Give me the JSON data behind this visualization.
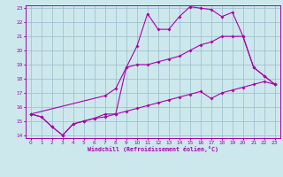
{
  "bg_color": "#cce8ec",
  "grid_color": "#99bbcc",
  "line_color": "#aa00aa",
  "xlabel": "Windchill (Refroidissement éolien,°C)",
  "xmin": 0,
  "xmax": 23,
  "ymin": 14,
  "ymax": 23,
  "line1_x": [
    0,
    1,
    2,
    3,
    4,
    5,
    6,
    7,
    8,
    9,
    10,
    11,
    12,
    13,
    14,
    15,
    16,
    17,
    18,
    19,
    20,
    21,
    22,
    23
  ],
  "line1_y": [
    15.5,
    15.3,
    14.6,
    14.0,
    14.8,
    15.0,
    15.2,
    15.3,
    15.5,
    18.8,
    20.3,
    22.6,
    21.5,
    21.5,
    22.4,
    23.1,
    23.0,
    22.9,
    22.4,
    22.7,
    21.0,
    18.8,
    18.2,
    17.6
  ],
  "line2_x": [
    0,
    7,
    8,
    9,
    10,
    11,
    12,
    13,
    14,
    15,
    16,
    17,
    18,
    19,
    20,
    21,
    22,
    23
  ],
  "line2_y": [
    15.5,
    16.8,
    17.3,
    18.8,
    19.0,
    19.0,
    19.2,
    19.4,
    19.6,
    20.0,
    20.4,
    20.6,
    21.0,
    21.0,
    21.0,
    18.8,
    18.2,
    17.6
  ],
  "line3_x": [
    0,
    1,
    2,
    3,
    4,
    5,
    6,
    7,
    8,
    9,
    10,
    11,
    12,
    13,
    14,
    15,
    16,
    17,
    18,
    19,
    20,
    21,
    22,
    23
  ],
  "line3_y": [
    15.5,
    15.3,
    14.6,
    14.0,
    14.8,
    15.0,
    15.2,
    15.5,
    15.5,
    15.7,
    15.9,
    16.1,
    16.3,
    16.5,
    16.7,
    16.9,
    17.1,
    16.6,
    17.0,
    17.2,
    17.4,
    17.6,
    17.8,
    17.6
  ]
}
